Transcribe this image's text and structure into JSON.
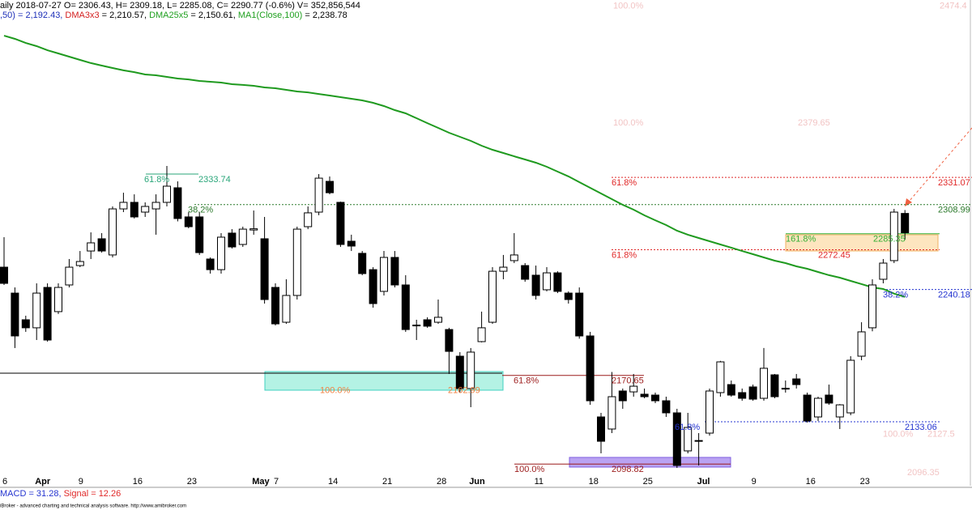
{
  "header": {
    "line1": "aily 2018-07-27 O= 2306.43, H= 2309.18, L= 2285.08, C= 2290.77 (-0.6%) V= 352,856,544",
    "line2": [
      {
        "text": ",50) = 2,192.43, ",
        "color": "#1c2fb8"
      },
      {
        "text": "DMA3x3",
        "color": "#d42020"
      },
      {
        "text": " = 2,210.57, ",
        "color": "#000000"
      },
      {
        "text": "DMA25x5",
        "color": "#20a020"
      },
      {
        "text": " = 2,150.61, ",
        "color": "#000000"
      },
      {
        "text": "MA1(Close,100)",
        "color": "#20a020"
      },
      {
        "text": " = 2,238.78",
        "color": "#000000"
      }
    ]
  },
  "chart_data": {
    "type": "candlestick",
    "categories": [
      "6",
      null,
      null,
      "Apr",
      null,
      null,
      null,
      "9",
      null,
      null,
      null,
      null,
      "16",
      null,
      null,
      null,
      null,
      "23",
      null,
      null,
      null,
      null,
      null,
      "May",
      null,
      "7",
      null,
      null,
      null,
      null,
      "14",
      null,
      null,
      null,
      null,
      "21",
      null,
      null,
      null,
      null,
      "28",
      null,
      null,
      "Jun",
      null,
      null,
      null,
      null,
      null,
      "11",
      null,
      null,
      null,
      null,
      "18",
      null,
      null,
      null,
      null,
      "25",
      null,
      null,
      null,
      null,
      "Jul",
      null,
      null,
      null,
      null,
      "9",
      null,
      null,
      null,
      null,
      "16",
      null,
      null,
      null,
      null,
      "23",
      null,
      null,
      null,
      null
    ],
    "ohlc": {
      "open": [
        2262.9,
        2241.9,
        2220.3,
        2213.8,
        2246.5,
        2226.9,
        2248.5,
        2264.2,
        2276.0,
        2285.9,
        2272.8,
        2310.1,
        2315.4,
        2307.5,
        2310.1,
        2315.4,
        2327.2,
        2303.6,
        2303.6,
        2269.5,
        2260.9,
        2290.5,
        2281.3,
        2293.0,
        2285.9,
        2246.5,
        2218.3,
        2240.0,
        2295.7,
        2307.5,
        2332.4,
        2315.4,
        2283.9,
        2274.1,
        2260.9,
        2243.3,
        2270.8,
        2248.5,
        2215.5,
        2220.3,
        2218.3,
        2212.4,
        2190.8,
        2164.6,
        2202.6,
        2218.3,
        2259.6,
        2268.2,
        2264.2,
        2256.4,
        2244.6,
        2258.3,
        2241.9,
        2241.9,
        2207.2,
        2141.6,
        2131.8,
        2162.6,
        2161.9,
        2160.0,
        2159.3,
        2154.7,
        2144.9,
        2114.1,
        2121.9,
        2128.5,
        2161.3,
        2167.8,
        2161.3,
        2165.9,
        2156.7,
        2175.7,
        2164.8,
        2172.4,
        2159.3,
        2141.6,
        2159.3,
        2141.6,
        2144.9,
        2190.8,
        2213.8,
        2253.1,
        2268.2,
        2306.43
      ],
      "high": [
        2287.2,
        2246.5,
        2223.6,
        2249.8,
        2249.8,
        2249.8,
        2269.5,
        2276.0,
        2291.1,
        2290.5,
        2312.1,
        2323.2,
        2321.9,
        2315.4,
        2321.9,
        2344.9,
        2332.4,
        2307.5,
        2307.5,
        2270.8,
        2290.5,
        2293.7,
        2295.7,
        2308.8,
        2303.6,
        2249.8,
        2253.1,
        2295.7,
        2312.1,
        2338.3,
        2336.4,
        2316.0,
        2289.2,
        2276.0,
        2262.9,
        2276.0,
        2276.0,
        2256.4,
        2220.3,
        2222.3,
        2236.7,
        2213.8,
        2194.1,
        2197.4,
        2226.9,
        2262.9,
        2272.8,
        2290.5,
        2266.2,
        2264.2,
        2262.9,
        2259.6,
        2243.3,
        2246.5,
        2210.5,
        2144.9,
        2178.0,
        2164.6,
        2176.4,
        2164.6,
        2161.3,
        2158.0,
        2148.2,
        2144.9,
        2128.5,
        2164.6,
        2187.0,
        2171.1,
        2164.6,
        2167.8,
        2197.4,
        2176.4,
        2171.1,
        2176.4,
        2161.3,
        2158.0,
        2167.8,
        2152.0,
        2190.8,
        2218.3,
        2253.1,
        2269.5,
        2310.1,
        2309.18
      ],
      "low": [
        2248.5,
        2197.4,
        2210.5,
        2203.9,
        2202.6,
        2225.0,
        2246.5,
        2262.9,
        2269.5,
        2274.7,
        2270.8,
        2307.5,
        2302.3,
        2303.6,
        2289.2,
        2312.1,
        2300.0,
        2294.4,
        2272.8,
        2257.7,
        2257.7,
        2278.0,
        2279.3,
        2289.2,
        2233.4,
        2215.7,
        2217.0,
        2236.7,
        2293.7,
        2305.0,
        2321.9,
        2279.3,
        2276.0,
        2256.4,
        2230.1,
        2240.0,
        2246.5,
        2210.5,
        2203.9,
        2213.8,
        2217.0,
        2176.4,
        2161.3,
        2149.5,
        2202.0,
        2217.0,
        2253.1,
        2266.2,
        2251.1,
        2236.7,
        2243.3,
        2241.9,
        2233.4,
        2205.0,
        2151.4,
        2112.1,
        2128.5,
        2148.2,
        2158.0,
        2156.7,
        2152.8,
        2141.6,
        2100.3,
        2112.1,
        2102.3,
        2126.5,
        2158.0,
        2158.0,
        2154.7,
        2154.7,
        2154.7,
        2156.7,
        2161.3,
        2164.6,
        2137.0,
        2138.3,
        2151.4,
        2131.8,
        2143.0,
        2187.5,
        2211.0,
        2249.8,
        2266.2,
        2285.08
      ],
      "close": [
        2249.8,
        2207.2,
        2213.8,
        2241.9,
        2203.9,
        2246.5,
        2262.9,
        2267.5,
        2282.6,
        2276.0,
        2310.1,
        2315.4,
        2303.6,
        2312.1,
        2315.4,
        2328.5,
        2302.3,
        2295.7,
        2274.7,
        2260.9,
        2287.2,
        2279.3,
        2293.7,
        2294.0,
        2236.7,
        2217.0,
        2240.0,
        2293.7,
        2306.9,
        2335.0,
        2323.2,
        2281.3,
        2280.0,
        2257.7,
        2233.4,
        2270.8,
        2248.5,
        2212.4,
        2216.0,
        2215.1,
        2222.3,
        2194.7,
        2164.6,
        2194.1,
        2213.8,
        2259.6,
        2262.9,
        2272.8,
        2253.1,
        2240.0,
        2258.3,
        2243.3,
        2236.7,
        2207.2,
        2154.7,
        2121.9,
        2158.0,
        2154.7,
        2166.5,
        2158.0,
        2154.7,
        2144.9,
        2102.3,
        2133.1,
        2122.5,
        2162.6,
        2186.2,
        2159.3,
        2156.7,
        2156.0,
        2181.0,
        2158.0,
        2164.2,
        2167.8,
        2138.3,
        2156.7,
        2152.8,
        2151.4,
        2187.5,
        2210.5,
        2248.5,
        2266.2,
        2307.5,
        2290.77
      ]
    },
    "up_color": "#ffffff",
    "down_color": "#000000",
    "ma": {
      "color": "#1f9a1f",
      "values": [
        2450.4,
        2447.8,
        2444.5,
        2441.9,
        2438.6,
        2436.0,
        2433.4,
        2430.8,
        2428.2,
        2426.2,
        2424.2,
        2422.3,
        2420.9,
        2419.0,
        2418.3,
        2417.0,
        2415.7,
        2415.0,
        2413.7,
        2413.1,
        2412.4,
        2411.1,
        2410.5,
        2409.8,
        2408.5,
        2407.8,
        2406.5,
        2405.2,
        2404.5,
        2403.2,
        2401.9,
        2400.6,
        2399.3,
        2398.0,
        2396.0,
        2393.4,
        2390.1,
        2387.5,
        2383.6,
        2379.6,
        2375.7,
        2371.8,
        2368.5,
        2365.2,
        2361.3,
        2358.0,
        2355.4,
        2352.7,
        2350.1,
        2347.5,
        2344.2,
        2340.3,
        2336.4,
        2331.8,
        2327.2,
        2322.6,
        2318.0,
        2313.4,
        2309.5,
        2304.9,
        2300.9,
        2297.0,
        2292.4,
        2289.2,
        2286.5,
        2283.9,
        2281.3,
        2278.7,
        2276.0,
        2273.4,
        2270.8,
        2268.2,
        2266.2,
        2263.6,
        2261.6,
        2259.0,
        2256.4,
        2254.4,
        2251.8,
        2249.2,
        2246.5,
        2245.2,
        2241.5,
        2238.78
      ]
    },
    "ylim": [
      2087.2,
      2479.3
    ],
    "levels": [
      {
        "pct": "100.0%",
        "value": 2474.4,
        "color": "#f2c4c4"
      },
      {
        "pct": "100.0%",
        "value": 2379.65,
        "color": "#f2c4c4"
      },
      {
        "pct": "61.8%",
        "value": 2333.74,
        "color": "#2aa67a"
      },
      {
        "pct": "38.2%",
        "value": 2308.99,
        "color": "#2c7a2c"
      },
      {
        "pct": "61.8%",
        "value": 2331.07,
        "color": "#e02828"
      },
      {
        "pct": "161.8%",
        "value": 2285.35,
        "color": "#34b034"
      },
      {
        "pct": "61.8%",
        "value": 2272.45,
        "color": "#e02828"
      },
      {
        "pct": "38.2%",
        "value": 2240.18,
        "color": "#2434d0"
      },
      {
        "pct": "61.8%",
        "value": 2170.65,
        "color": "#9c1c1c"
      },
      {
        "pct": "100.0%",
        "value": 2162.99,
        "color": "#f08040"
      },
      {
        "pct": "61.8%",
        "value": 2133.06,
        "color": "#2434d0"
      },
      {
        "pct": "100.0%",
        "value": 2127.5,
        "color": "#f2c4c4"
      },
      {
        "pct": "100.0%",
        "value": 2098.82,
        "color": "#9c1c1c"
      },
      {
        "value": 2096.35,
        "color": "#f2c4c4"
      }
    ]
  },
  "macd": {
    "label": "MACD = 31.28, ",
    "label_color": "#2434d0",
    "signal": "Signal = 12.26",
    "signal_color": "#e02828"
  },
  "footer": "iBroker - advanced charting and technical analysis software. http://www.amibroker.com"
}
